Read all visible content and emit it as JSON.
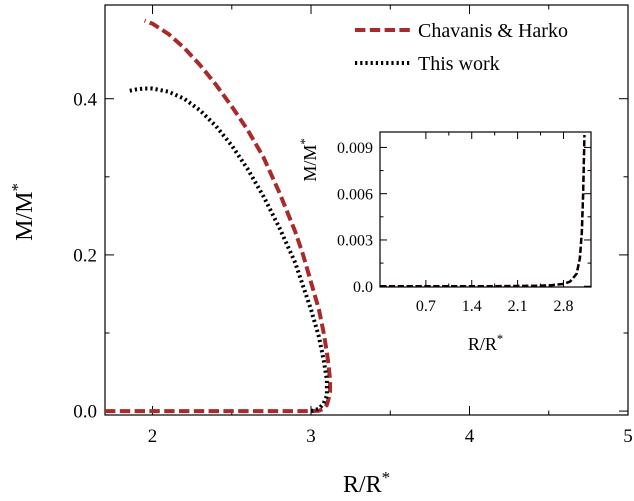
{
  "chart_data": [
    {
      "type": "line",
      "xlabel": "R/R",
      "xlabel_sup": "*",
      "ylabel": "M/M",
      "ylabel_sup": "*",
      "xlim": [
        1.7,
        5.0
      ],
      "ylim": [
        -0.005,
        0.52
      ],
      "xticks": [
        2,
        3,
        4,
        5
      ],
      "xtick_labels": [
        "2",
        "3",
        "4",
        "5"
      ],
      "yticks": [
        0.0,
        0.2,
        0.4
      ],
      "ytick_labels": [
        "0.0",
        "0.2",
        "0.4"
      ],
      "grid": false,
      "legend_position": "top-right",
      "series": [
        {
          "name": "Chavanis & Harko",
          "color": "#aa2a2a",
          "style": "dashed",
          "x": [
            1.7,
            2.0,
            2.5,
            2.8,
            3.0,
            3.05,
            3.08,
            3.1,
            3.11,
            3.12,
            3.12,
            3.11,
            3.1,
            3.08,
            3.05,
            3.0,
            2.95,
            2.9,
            2.8,
            2.7,
            2.6,
            2.5,
            2.4,
            2.3,
            2.2,
            2.1,
            2.0,
            1.95
          ],
          "y": [
            0.0,
            0.0,
            0.0,
            0.0,
            0.0,
            0.0005,
            0.003,
            0.008,
            0.015,
            0.025,
            0.04,
            0.06,
            0.075,
            0.1,
            0.13,
            0.165,
            0.2,
            0.23,
            0.28,
            0.325,
            0.36,
            0.39,
            0.418,
            0.443,
            0.465,
            0.483,
            0.496,
            0.5
          ]
        },
        {
          "name": "This work",
          "color": "#000000",
          "style": "dotted",
          "x": [
            3.0,
            3.05,
            3.08,
            3.1,
            3.1,
            3.08,
            3.05,
            3.0,
            2.95,
            2.9,
            2.8,
            2.7,
            2.6,
            2.5,
            2.4,
            2.3,
            2.2,
            2.1,
            2.0,
            1.95,
            1.9,
            1.85
          ],
          "y": [
            0.0,
            0.003,
            0.01,
            0.02,
            0.04,
            0.065,
            0.095,
            0.13,
            0.16,
            0.19,
            0.235,
            0.275,
            0.31,
            0.34,
            0.365,
            0.385,
            0.4,
            0.409,
            0.413,
            0.413,
            0.412,
            0.41
          ]
        }
      ]
    },
    {
      "type": "line",
      "xlabel": "R/R",
      "xlabel_sup": "*",
      "ylabel": "M/M",
      "ylabel_sup": "*",
      "xlim": [
        0.0,
        3.22
      ],
      "ylim": [
        -5e-05,
        0.01
      ],
      "xticks": [
        0.7,
        1.4,
        2.1,
        2.8
      ],
      "xtick_labels": [
        "0.7",
        "1.4",
        "2.1",
        "2.8"
      ],
      "yticks": [
        0.0,
        0.003,
        0.006,
        0.009
      ],
      "ytick_labels": [
        "0.0",
        "0.003",
        "0.006",
        "0.009"
      ],
      "grid": false,
      "series": [
        {
          "color": "#aa2a2a",
          "style": "dashed",
          "x": [
            0.0,
            0.5,
            1.0,
            1.5,
            2.0,
            2.4,
            2.6,
            2.8,
            2.9,
            3.0,
            3.05,
            3.08,
            3.1,
            3.12
          ],
          "y": [
            0.0,
            0.0,
            0.0,
            0.0,
            1e-05,
            3e-05,
            6e-05,
            0.00015,
            0.0003,
            0.0008,
            0.0018,
            0.0035,
            0.006,
            0.0098
          ]
        },
        {
          "color": "#000000",
          "style": "dashed",
          "x": [
            0.0,
            0.5,
            1.0,
            1.5,
            2.0,
            2.4,
            2.6,
            2.8,
            2.9,
            3.0,
            3.05,
            3.08,
            3.1,
            3.12
          ],
          "y": [
            0.0,
            0.0,
            0.0,
            0.0,
            1e-05,
            3e-05,
            6e-05,
            0.00015,
            0.0003,
            0.0008,
            0.0018,
            0.0035,
            0.006,
            0.0098
          ]
        }
      ]
    }
  ]
}
